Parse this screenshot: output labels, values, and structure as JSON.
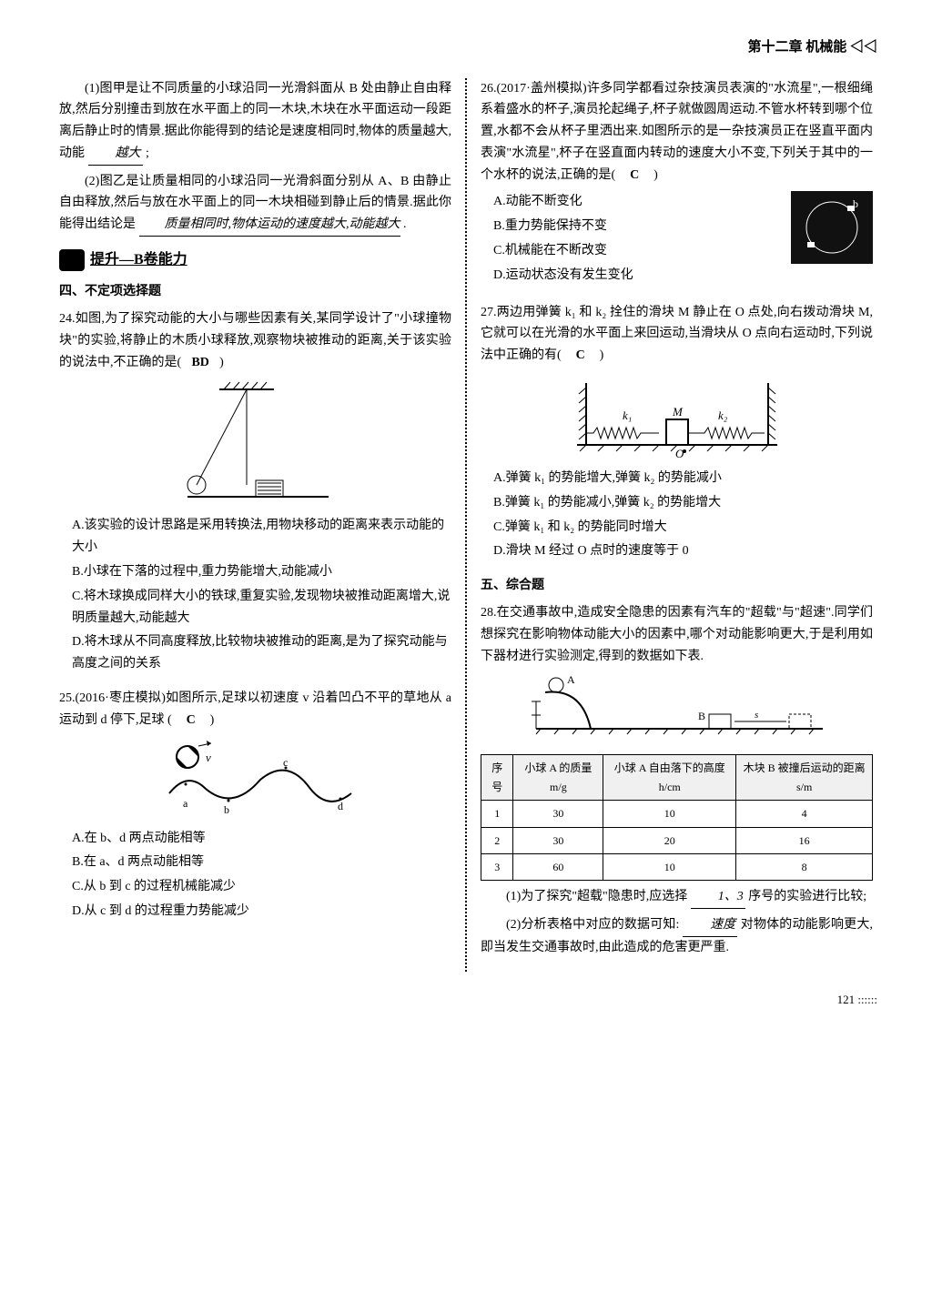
{
  "header": {
    "chapter": "第十二章  机械能 ◁◁"
  },
  "left": {
    "q_cont_1": "(1)图甲是让不同质量的小球沿同一光滑斜面从 B 处由静止自由释放,然后分别撞击到放在水平面上的同一木块,木块在水平面运动一段距离后静止时的情景.据此你能得到的结论是速度相同时,物体的质量越大,动能",
    "q_cont_1_ans": "越大",
    "q_cont_1_tail": ";",
    "q_cont_2": "(2)图乙是让质量相同的小球沿同一光滑斜面分别从 A、B 由静止自由释放,然后与放在水平面上的同一木块相碰到静止后的情景.据此你能得出结论是",
    "q_cont_2_ans": "质量相同时,物体运动的速度越大,动能越大",
    "q_cont_2_tail": ".",
    "section_b": "提升—B卷能力",
    "subsection": "四、不定项选择题",
    "q24_stem": "24.如图,为了探究动能的大小与哪些因素有关,某同学设计了\"小球撞物块\"的实验,将静止的木质小球释放,观察物块被推动的距离,关于该实验的说法中,不正确的是(   ",
    "q24_ans": "BD",
    "q24_tail": "   )",
    "q24_A": "A.该实验的设计思路是采用转换法,用物块移动的距离来表示动能的大小",
    "q24_B": "B.小球在下落的过程中,重力势能增大,动能减小",
    "q24_C": "C.将木球换成同样大小的铁球,重复实验,发现物块被推动距离增大,说明质量越大,动能越大",
    "q24_D": "D.将木球从不同高度释放,比较物块被推动的距离,是为了探究动能与高度之间的关系",
    "q25_stem": "25.(2016·枣庄模拟)如图所示,足球以初速度 v 沿着凹凸不平的草地从 a 运动到 d 停下,足球 (   ",
    "q25_ans": "C",
    "q25_tail": "   )",
    "q25_A": "A.在 b、d 两点动能相等",
    "q25_B": "B.在 a、d 两点动能相等",
    "q25_C": "C.从 b 到 c 的过程机械能减少",
    "q25_D": "D.从 c 到 d 的过程重力势能减少"
  },
  "right": {
    "q26_stem": "26.(2017·盖州模拟)许多同学都看过杂技演员表演的\"水流星\",一根细绳系着盛水的杯子,演员抡起绳子,杯子就做圆周运动.不管水杯转到哪个位置,水都不会从杯子里洒出来.如图所示的是一杂技演员正在竖直平面内表演\"水流星\",杯子在竖直面内转动的速度大小不变,下列关于其中的一个水杯的说法,正确的是(   ",
    "q26_ans": "C",
    "q26_tail": "   )",
    "q26_A": "A.动能不断变化",
    "q26_B": "B.重力势能保持不变",
    "q26_C": "C.机械能在不断改变",
    "q26_D": "D.运动状态没有发生变化",
    "q27_stem": "27.两边用弹簧 k₁ 和 k₂ 拴住的滑块 M 静止在 O 点处,向右拨动滑块 M,它就可以在光滑的水平面上来回运动,当滑块从 O 点向右运动时,下列说法中正确的有(   ",
    "q27_ans": "C",
    "q27_tail": "   )",
    "q27_A": "A.弹簧 k₁ 的势能增大,弹簧 k₂ 的势能减小",
    "q27_B": "B.弹簧 k₁ 的势能减小,弹簧 k₂ 的势能增大",
    "q27_C": "C.弹簧 k₁ 和 k₂ 的势能同时增大",
    "q27_D": "D.滑块 M 经过 O 点时的速度等于 0",
    "subsection5": "五、综合题",
    "q28_stem": "28.在交通事故中,造成安全隐患的因素有汽车的\"超载\"与\"超速\".同学们想探究在影响物体动能大小的因素中,哪个对动能影响更大,于是利用如下器材进行实验测定,得到的数据如下表.",
    "table": {
      "h1": "序号",
      "h2": "小球 A 的质量 m/g",
      "h3": "小球 A 自由落下的高度 h/cm",
      "h4": "木块 B 被撞后运动的距离 s/m",
      "rows": [
        [
          "1",
          "30",
          "10",
          "4"
        ],
        [
          "2",
          "30",
          "20",
          "16"
        ],
        [
          "3",
          "60",
          "10",
          "8"
        ]
      ]
    },
    "q28_1a": "(1)为了探究\"超载\"隐患时,应选择",
    "q28_1_ans": "1、3",
    "q28_1b": "序号的实验进行比较;",
    "q28_2a": "(2)分析表格中对应的数据可知:",
    "q28_2_ans": "速度",
    "q28_2b": "对物体的动能影响更大,即当发生交通事故时,由此造成的危害更严重."
  },
  "page_number": "121"
}
